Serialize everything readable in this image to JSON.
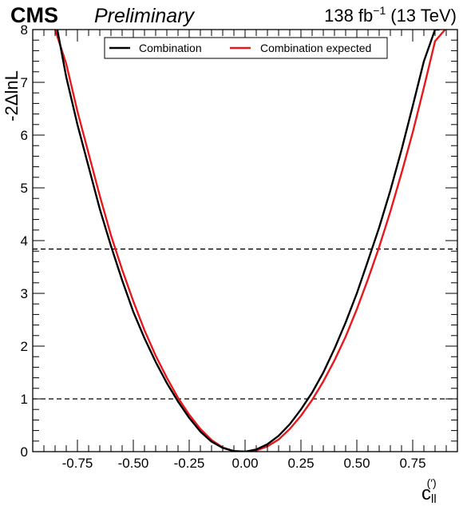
{
  "header": {
    "experiment": "CMS",
    "status": "Preliminary",
    "lumi_value": "138 fb",
    "lumi_exponent": "−1",
    "energy": "(13 TeV)"
  },
  "chart_data": {
    "type": "line",
    "title": "",
    "xlabel": {
      "base": "c",
      "subscript": "ll",
      "superscript": "(′)"
    },
    "ylabel": "-2ΔlnL",
    "xlim": [
      -0.95,
      0.95
    ],
    "ylim": [
      0,
      8
    ],
    "xticks": [
      -0.75,
      -0.5,
      -0.25,
      0.0,
      0.25,
      0.5,
      0.75
    ],
    "xtick_labels": [
      "-0.75",
      "-0.50",
      "-0.25",
      "0.00",
      "0.25",
      "0.50",
      "0.75"
    ],
    "yticks": [
      0,
      1,
      2,
      3,
      4,
      5,
      6,
      7,
      8
    ],
    "ytick_labels": [
      "0",
      "1",
      "2",
      "3",
      "4",
      "5",
      "6",
      "7",
      "8"
    ],
    "grid": false,
    "legend_position": "top-center",
    "reference_lines": [
      {
        "y": 1.0,
        "style": "dashed"
      },
      {
        "y": 3.84,
        "style": "dashed"
      }
    ],
    "series": [
      {
        "name": "Combination",
        "color": "#000000",
        "x": [
          -0.84,
          -0.8,
          -0.75,
          -0.7,
          -0.65,
          -0.6,
          -0.55,
          -0.5,
          -0.45,
          -0.4,
          -0.35,
          -0.3,
          -0.25,
          -0.2,
          -0.15,
          -0.1,
          -0.05,
          0.0,
          0.05,
          0.1,
          0.15,
          0.2,
          0.25,
          0.3,
          0.35,
          0.4,
          0.45,
          0.5,
          0.55,
          0.6,
          0.65,
          0.7,
          0.75,
          0.8,
          0.85,
          0.87
        ],
        "y": [
          8.0,
          7.1,
          6.2,
          5.4,
          4.6,
          3.9,
          3.25,
          2.65,
          2.15,
          1.7,
          1.3,
          0.95,
          0.64,
          0.38,
          0.19,
          0.07,
          0.01,
          0.0,
          0.04,
          0.14,
          0.3,
          0.52,
          0.8,
          1.12,
          1.5,
          1.95,
          2.45,
          3.0,
          3.62,
          4.25,
          4.95,
          5.72,
          6.55,
          7.4,
          8.0,
          8.0
        ]
      },
      {
        "name": "Combination expected",
        "color": "#e8191c",
        "x": [
          -0.85,
          -0.8,
          -0.75,
          -0.7,
          -0.65,
          -0.6,
          -0.55,
          -0.5,
          -0.45,
          -0.4,
          -0.35,
          -0.3,
          -0.25,
          -0.2,
          -0.15,
          -0.1,
          -0.05,
          0.0,
          0.05,
          0.1,
          0.15,
          0.2,
          0.25,
          0.3,
          0.35,
          0.4,
          0.45,
          0.5,
          0.55,
          0.6,
          0.65,
          0.7,
          0.75,
          0.8,
          0.85,
          0.895
        ],
        "y": [
          8.0,
          7.35,
          6.45,
          5.65,
          4.85,
          4.1,
          3.45,
          2.85,
          2.3,
          1.82,
          1.4,
          1.02,
          0.7,
          0.43,
          0.22,
          0.08,
          0.01,
          0.0,
          0.02,
          0.1,
          0.23,
          0.43,
          0.68,
          0.98,
          1.33,
          1.73,
          2.18,
          2.7,
          3.27,
          3.88,
          4.55,
          5.28,
          6.05,
          6.9,
          7.78,
          8.0
        ]
      }
    ]
  }
}
